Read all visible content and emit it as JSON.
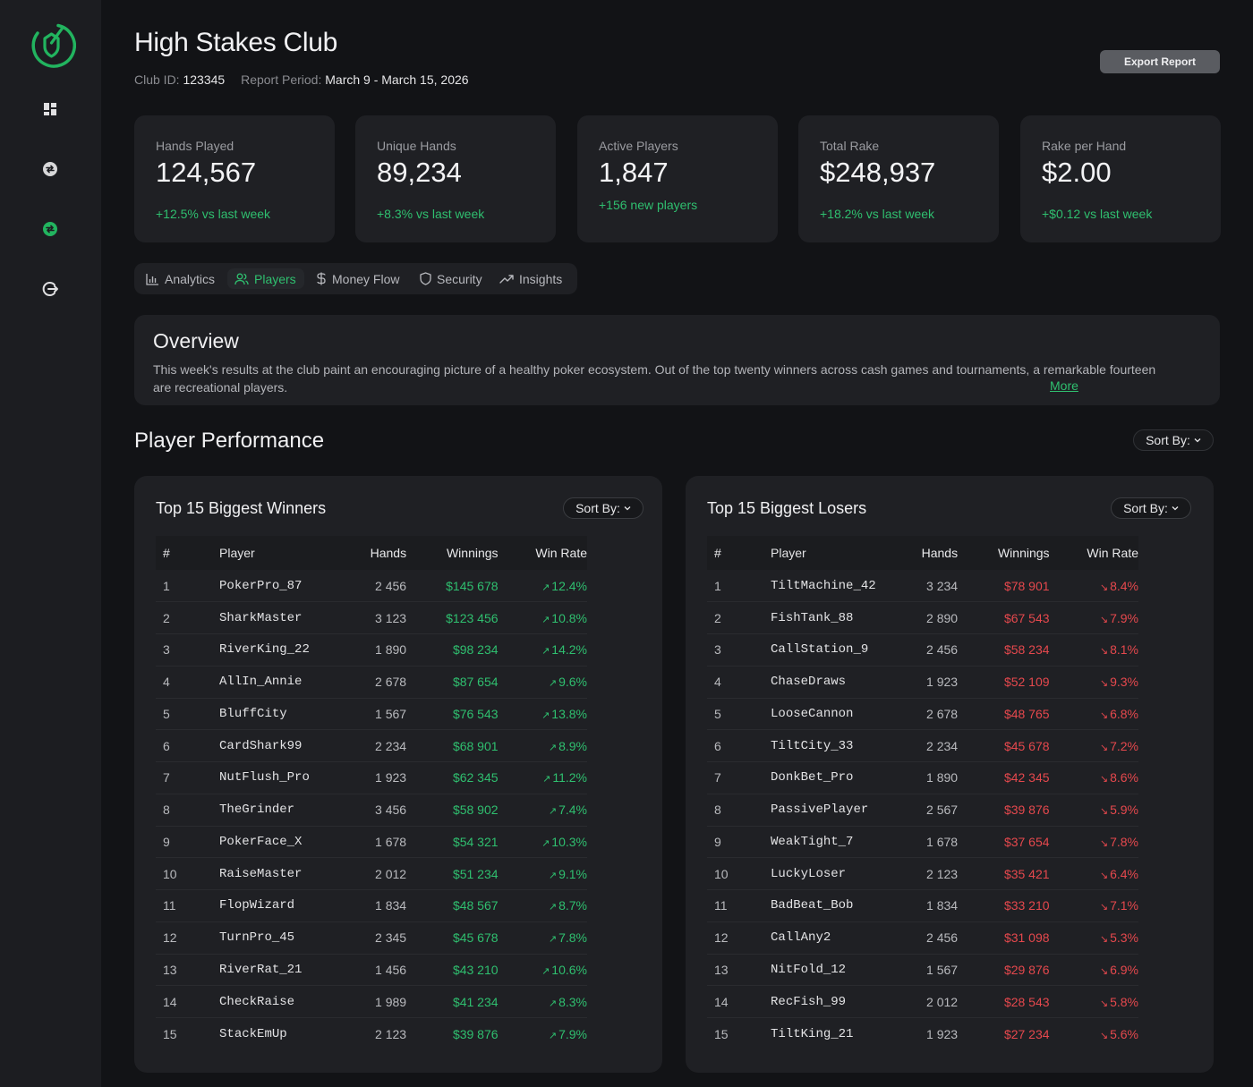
{
  "header": {
    "title": "High Stakes Club",
    "club_id_label": "Club ID:",
    "club_id": "123345",
    "period_label": "Report Period:",
    "period": "March 9 - March 15, 2026",
    "export_label": "Export Report"
  },
  "sidebar": {
    "items": [
      {
        "name": "logo-icon"
      },
      {
        "name": "dashboard-icon"
      },
      {
        "name": "exchange-icon"
      },
      {
        "name": "transfer-icon"
      },
      {
        "name": "logout-icon"
      }
    ]
  },
  "stats": [
    {
      "label": "Hands Played",
      "value": "124,567",
      "delta": "+12.5% vs last week"
    },
    {
      "label": "Unique Hands",
      "value": "89,234",
      "delta": "+8.3% vs last week"
    },
    {
      "label": "Active Players",
      "value": "1,847",
      "delta": "+156 new players"
    },
    {
      "label": "Total Rake",
      "value": "$248,937",
      "delta": "+18.2% vs last week"
    },
    {
      "label": "Rake per Hand",
      "value": "$2.00",
      "delta": "+$0.12 vs last week"
    }
  ],
  "tabs": [
    {
      "label": "Analytics"
    },
    {
      "label": "Players"
    },
    {
      "label": "Money Flow"
    },
    {
      "label": "Security"
    },
    {
      "label": "Insights"
    }
  ],
  "overview": {
    "title": "Overview",
    "text": "This week's results at the club paint an encouraging picture of a healthy poker ecosystem. Out of the top twenty winners across cash games and tournaments, a remarkable fourteen are recreational players.",
    "more": "More"
  },
  "performance": {
    "title": "Player Performance",
    "sort_label": "Sort By:"
  },
  "colors": {
    "accent": "#2fbf6f",
    "negative": "#e5484d",
    "background": "#121316",
    "card": "#1f2024"
  },
  "winners": {
    "title": "Top 15 Biggest Winners",
    "sort_label": "Sort By:",
    "columns": [
      "#",
      "Player",
      "Hands",
      "Winnings",
      "Win Rate"
    ],
    "rows": [
      [
        "1",
        "PokerPro_87",
        "2 456",
        "$145 678",
        "12.4%"
      ],
      [
        "2",
        "SharkMaster",
        "3 123",
        "$123 456",
        "10.8%"
      ],
      [
        "3",
        "RiverKing_22",
        "1 890",
        "$98 234",
        "14.2%"
      ],
      [
        "4",
        "AllIn_Annie",
        "2 678",
        "$87 654",
        "9.6%"
      ],
      [
        "5",
        "BluffCity",
        "1 567",
        "$76 543",
        "13.8%"
      ],
      [
        "6",
        "CardShark99",
        "2 234",
        "$68 901",
        "8.9%"
      ],
      [
        "7",
        "NutFlush_Pro",
        "1 923",
        "$62 345",
        "11.2%"
      ],
      [
        "8",
        "TheGrinder",
        "3 456",
        "$58 902",
        "7.4%"
      ],
      [
        "9",
        "PokerFace_X",
        "1 678",
        "$54 321",
        "10.3%"
      ],
      [
        "10",
        "RaiseMaster",
        "2 012",
        "$51 234",
        "9.1%"
      ],
      [
        "11",
        "FlopWizard",
        "1 834",
        "$48 567",
        "8.7%"
      ],
      [
        "12",
        "TurnPro_45",
        "2 345",
        "$45 678",
        "7.8%"
      ],
      [
        "13",
        "RiverRat_21",
        "1 456",
        "$43 210",
        "10.6%"
      ],
      [
        "14",
        "CheckRaise",
        "1 989",
        "$41 234",
        "8.3%"
      ],
      [
        "15",
        "StackEmUp",
        "2 123",
        "$39 876",
        "7.9%"
      ]
    ]
  },
  "losers": {
    "title": "Top 15 Biggest Losers",
    "sort_label": "Sort By:",
    "columns": [
      "#",
      "Player",
      "Hands",
      "Winnings",
      "Win Rate"
    ],
    "rows": [
      [
        "1",
        "TiltMachine_42",
        "3 234",
        "$78 901",
        "8.4%"
      ],
      [
        "2",
        "FishTank_88",
        "2 890",
        "$67 543",
        "7.9%"
      ],
      [
        "3",
        "CallStation_9",
        "2 456",
        "$58 234",
        "8.1%"
      ],
      [
        "4",
        "ChaseDraws",
        "1 923",
        "$52 109",
        "9.3%"
      ],
      [
        "5",
        "LooseCannon",
        "2 678",
        "$48 765",
        "6.8%"
      ],
      [
        "6",
        "TiltCity_33",
        "2 234",
        "$45 678",
        "7.2%"
      ],
      [
        "7",
        "DonkBet_Pro",
        "1 890",
        "$42 345",
        "8.6%"
      ],
      [
        "8",
        "PassivePlayer",
        "2 567",
        "$39 876",
        "5.9%"
      ],
      [
        "9",
        "WeakTight_7",
        "1 678",
        "$37 654",
        "7.8%"
      ],
      [
        "10",
        "LuckyLoser",
        "2 123",
        "$35 421",
        "6.4%"
      ],
      [
        "11",
        "BadBeat_Bob",
        "1 834",
        "$33 210",
        "7.1%"
      ],
      [
        "12",
        "CallAny2",
        "2 456",
        "$31 098",
        "5.3%"
      ],
      [
        "13",
        "NitFold_12",
        "1 567",
        "$29 876",
        "6.9%"
      ],
      [
        "14",
        "RecFish_99",
        "2 012",
        "$28 543",
        "5.8%"
      ],
      [
        "15",
        "TiltKing_21",
        "1 923",
        "$27 234",
        "5.6%"
      ]
    ]
  }
}
